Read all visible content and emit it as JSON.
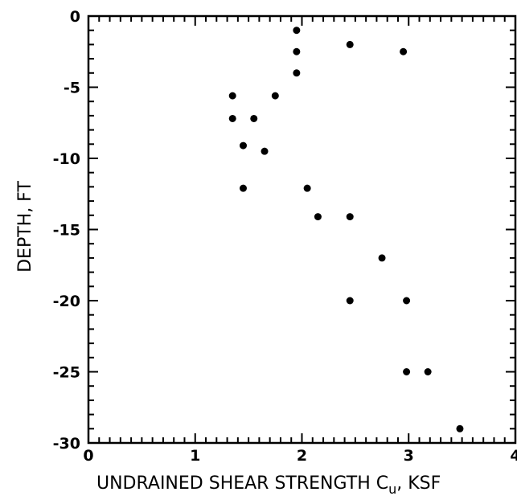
{
  "chart_data": {
    "type": "scatter",
    "xlabel": "UNDRAINED SHEAR STRENGTH C",
    "xlabel_subscript": "u",
    "xlabel_unit": ", KSF",
    "ylabel": "DEPTH, FT",
    "xlim": [
      0,
      4
    ],
    "ylim": [
      -30,
      0
    ],
    "x_ticks": [
      0,
      1,
      2,
      3,
      4
    ],
    "y_ticks": [
      0,
      -5,
      -10,
      -15,
      -20,
      -25,
      -30
    ],
    "x_tick_labels": [
      "0",
      "1",
      "2",
      "3",
      "4"
    ],
    "y_tick_labels": [
      "0",
      "-5",
      "-10",
      "-15",
      "-20",
      "-25",
      "-30"
    ],
    "grid": false,
    "points": [
      {
        "x": 1.95,
        "y": -1.0
      },
      {
        "x": 2.45,
        "y": -2.0
      },
      {
        "x": 2.95,
        "y": -2.5
      },
      {
        "x": 1.95,
        "y": -2.5
      },
      {
        "x": 1.95,
        "y": -4.0
      },
      {
        "x": 1.35,
        "y": -5.6
      },
      {
        "x": 1.75,
        "y": -5.6
      },
      {
        "x": 1.35,
        "y": -7.2
      },
      {
        "x": 1.55,
        "y": -7.2
      },
      {
        "x": 1.45,
        "y": -9.1
      },
      {
        "x": 1.65,
        "y": -9.5
      },
      {
        "x": 1.45,
        "y": -12.1
      },
      {
        "x": 2.05,
        "y": -12.1
      },
      {
        "x": 2.15,
        "y": -14.1
      },
      {
        "x": 2.45,
        "y": -14.1
      },
      {
        "x": 2.75,
        "y": -17.0
      },
      {
        "x": 2.45,
        "y": -20.0
      },
      {
        "x": 2.98,
        "y": -20.0
      },
      {
        "x": 2.98,
        "y": -25.0
      },
      {
        "x": 3.18,
        "y": -25.0
      },
      {
        "x": 3.48,
        "y": -29.0
      }
    ]
  },
  "colors": {
    "ink": "#000000",
    "background": "#ffffff"
  }
}
